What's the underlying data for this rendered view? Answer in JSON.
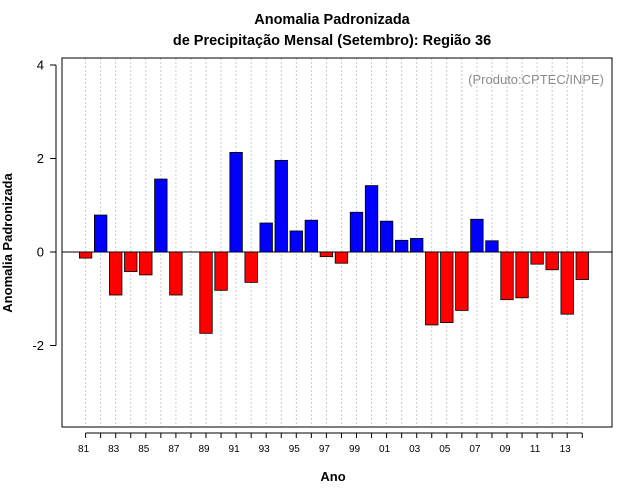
{
  "chart_data": {
    "type": "bar",
    "title_line1": "Anomalia Padronizada",
    "title_line2": "de Precipitação Mensal (Setembro): Região 36",
    "xlabel": "Ano",
    "ylabel": "Anomalia Padronizada",
    "credit": "(Produto:CPTEC/INPE)",
    "ylim": [
      -3.7,
      4.2
    ],
    "yticks": [
      -2,
      0,
      2,
      4
    ],
    "ytick_labels": [
      "-2",
      "0",
      "2",
      "4"
    ],
    "grid": "vertical dotted",
    "colors": {
      "positive": "#0000ff",
      "negative": "#ff0000",
      "grid": "#bdbdbd",
      "credit": "#8c8c8c"
    },
    "categories": [
      "1981",
      "1982",
      "1983",
      "1984",
      "1985",
      "1986",
      "1987",
      "1988",
      "1989",
      "1990",
      "1991",
      "1992",
      "1993",
      "1994",
      "1995",
      "1996",
      "1997",
      "1998",
      "1999",
      "2000",
      "2001",
      "2002",
      "2003",
      "2004",
      "2005",
      "2006",
      "2007",
      "2008",
      "2009",
      "2010",
      "2011",
      "2012",
      "2013",
      "2014"
    ],
    "values": [
      -0.13,
      0.79,
      -0.92,
      -0.42,
      -0.49,
      1.56,
      -0.92,
      null,
      -1.74,
      -0.82,
      2.13,
      -0.65,
      0.62,
      1.96,
      0.45,
      0.68,
      -0.1,
      -0.24,
      0.85,
      1.42,
      0.66,
      0.25,
      0.29,
      -1.56,
      -1.51,
      -1.25,
      0.7,
      0.24,
      -1.02,
      -0.98,
      -0.26,
      -0.38,
      -1.33,
      -0.59
    ],
    "xtick_labels": [
      "81",
      "83",
      "85",
      "87",
      "89",
      "91",
      "93",
      "95",
      "97",
      "99",
      "01",
      "03",
      "05",
      "07",
      "09",
      "11",
      "13"
    ]
  }
}
